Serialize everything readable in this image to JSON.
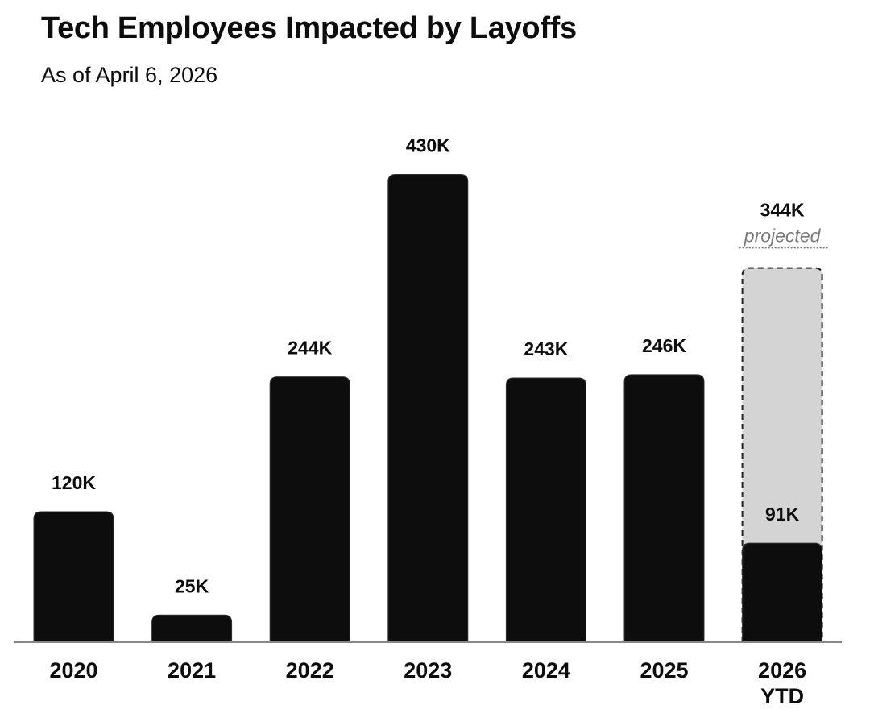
{
  "header": {
    "title": "Tech Employees Impacted by Layoffs",
    "subtitle": "As of April 6, 2026"
  },
  "colors": {
    "bar": "#0d0d0d",
    "projected_fill": "#d4d4d4",
    "axis": "#888888",
    "projected_text": "#7a7a7a"
  },
  "chart_data": {
    "type": "bar",
    "title": "Tech Employees Impacted by Layoffs",
    "subtitle": "As of April 6, 2026",
    "xlabel": "",
    "ylabel": "",
    "categories": [
      {
        "line1": "2020",
        "line2": ""
      },
      {
        "line1": "2021",
        "line2": ""
      },
      {
        "line1": "2022",
        "line2": ""
      },
      {
        "line1": "2023",
        "line2": ""
      },
      {
        "line1": "2024",
        "line2": ""
      },
      {
        "line1": "2025",
        "line2": ""
      },
      {
        "line1": "2026",
        "line2": "YTD"
      }
    ],
    "values": [
      120,
      25,
      244,
      430,
      243,
      246,
      91
    ],
    "value_labels": [
      "120K",
      "25K",
      "244K",
      "430K",
      "243K",
      "246K",
      "91K"
    ],
    "units": "thousands",
    "projected": {
      "category_index": 6,
      "value": 344,
      "value_label": "344K",
      "note": "projected"
    },
    "ylim": [
      0,
      430
    ],
    "grid": false,
    "legend": "none"
  }
}
